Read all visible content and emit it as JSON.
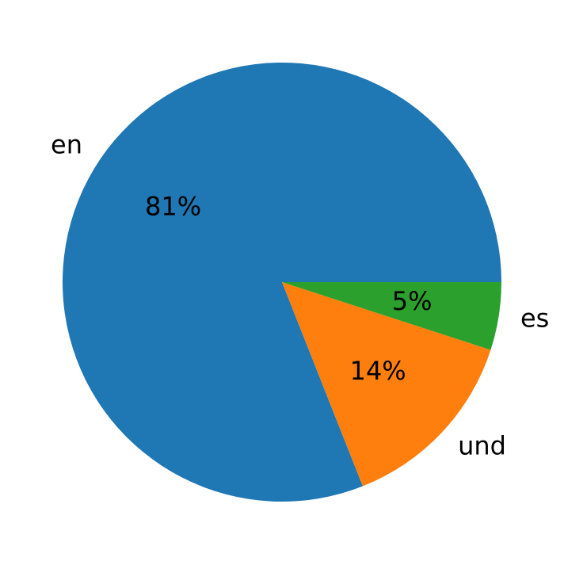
{
  "chart_data": {
    "type": "pie",
    "categories": [
      "en",
      "und",
      "es"
    ],
    "values": [
      81,
      14,
      5
    ],
    "value_labels": [
      "81%",
      "14%",
      "5%"
    ],
    "colors": [
      "#1f77b4",
      "#ff7f0e",
      "#2ca02c"
    ],
    "start_angle": 0,
    "direction": "counterclockwise"
  }
}
